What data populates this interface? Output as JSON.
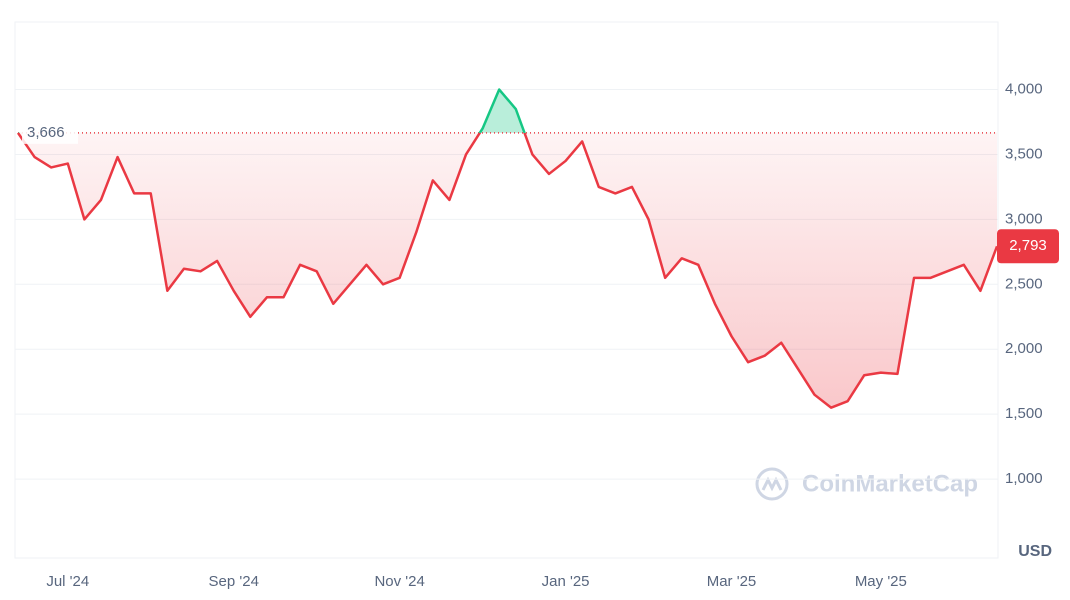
{
  "chart_data": {
    "type": "line",
    "categories": [
      null,
      null,
      null,
      "Jul '24",
      null,
      null,
      null,
      null,
      null,
      null,
      null,
      null,
      null,
      "Sep '24",
      null,
      null,
      null,
      null,
      null,
      null,
      null,
      null,
      null,
      "Nov '24",
      null,
      null,
      null,
      null,
      null,
      null,
      null,
      null,
      null,
      "Jan '25",
      null,
      null,
      null,
      null,
      null,
      null,
      null,
      null,
      null,
      "Mar '25",
      null,
      null,
      null,
      null,
      null,
      null,
      null,
      null,
      "May '25",
      null,
      null,
      null,
      null,
      null,
      null,
      null
    ],
    "values": [
      3666,
      3480,
      3400,
      3430,
      3000,
      3150,
      3480,
      3200,
      3200,
      2450,
      2620,
      2600,
      2680,
      2450,
      2250,
      2400,
      2400,
      2650,
      2600,
      2350,
      2500,
      2650,
      2500,
      2550,
      2900,
      3300,
      3150,
      3500,
      3700,
      4000,
      3850,
      3500,
      3350,
      3450,
      3600,
      3250,
      3200,
      3250,
      3000,
      2550,
      2700,
      2650,
      2350,
      2100,
      1900,
      1950,
      2050,
      1850,
      1650,
      1550,
      1600,
      1800,
      1820,
      1810,
      2550,
      2550,
      2600,
      2650,
      2450,
      2793
    ],
    "color_below": "#ea3943",
    "color_above": "#16c784",
    "reference_line": {
      "value": 3666,
      "label": "3,666"
    },
    "last_price": {
      "value": 2793,
      "label": "2,793"
    },
    "ylim": [
      400,
      4520
    ],
    "yticks": [
      {
        "value": 1000,
        "label": "1,000"
      },
      {
        "value": 1500,
        "label": "1,500"
      },
      {
        "value": 2000,
        "label": "2,000"
      },
      {
        "value": 2500,
        "label": "2,500"
      },
      {
        "value": 3000,
        "label": "3,000"
      },
      {
        "value": 3500,
        "label": "3,500"
      },
      {
        "value": 4000,
        "label": "4,000"
      }
    ],
    "y_unit": "USD",
    "watermark": "CoinMarketCap",
    "grid": true
  }
}
